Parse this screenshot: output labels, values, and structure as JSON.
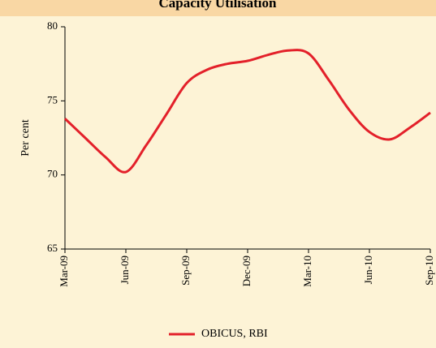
{
  "chart_data": {
    "type": "line",
    "title": "Capacity Utilisation",
    "y_label": "Per cent",
    "categories": [
      "Mar-09",
      null,
      null,
      "Jun-09",
      null,
      null,
      "Sep-09",
      null,
      null,
      "Dec-09",
      null,
      null,
      "Mar-10",
      null,
      null,
      "Jun-10",
      null,
      null,
      "Sep-10"
    ],
    "series": [
      {
        "name": "OBICUS, RBI",
        "color": "#e3202a",
        "values": [
          73.8,
          72.5,
          71.2,
          70.2,
          72.0,
          74.1,
          76.2,
          77.1,
          77.5,
          77.7,
          78.1,
          78.4,
          78.2,
          76.4,
          74.4,
          72.9,
          72.4,
          73.2,
          74.2
        ]
      }
    ],
    "ylim": [
      65,
      80
    ],
    "yticks": [
      65,
      70,
      75,
      80
    ],
    "grid": false,
    "legend": "bottom"
  }
}
